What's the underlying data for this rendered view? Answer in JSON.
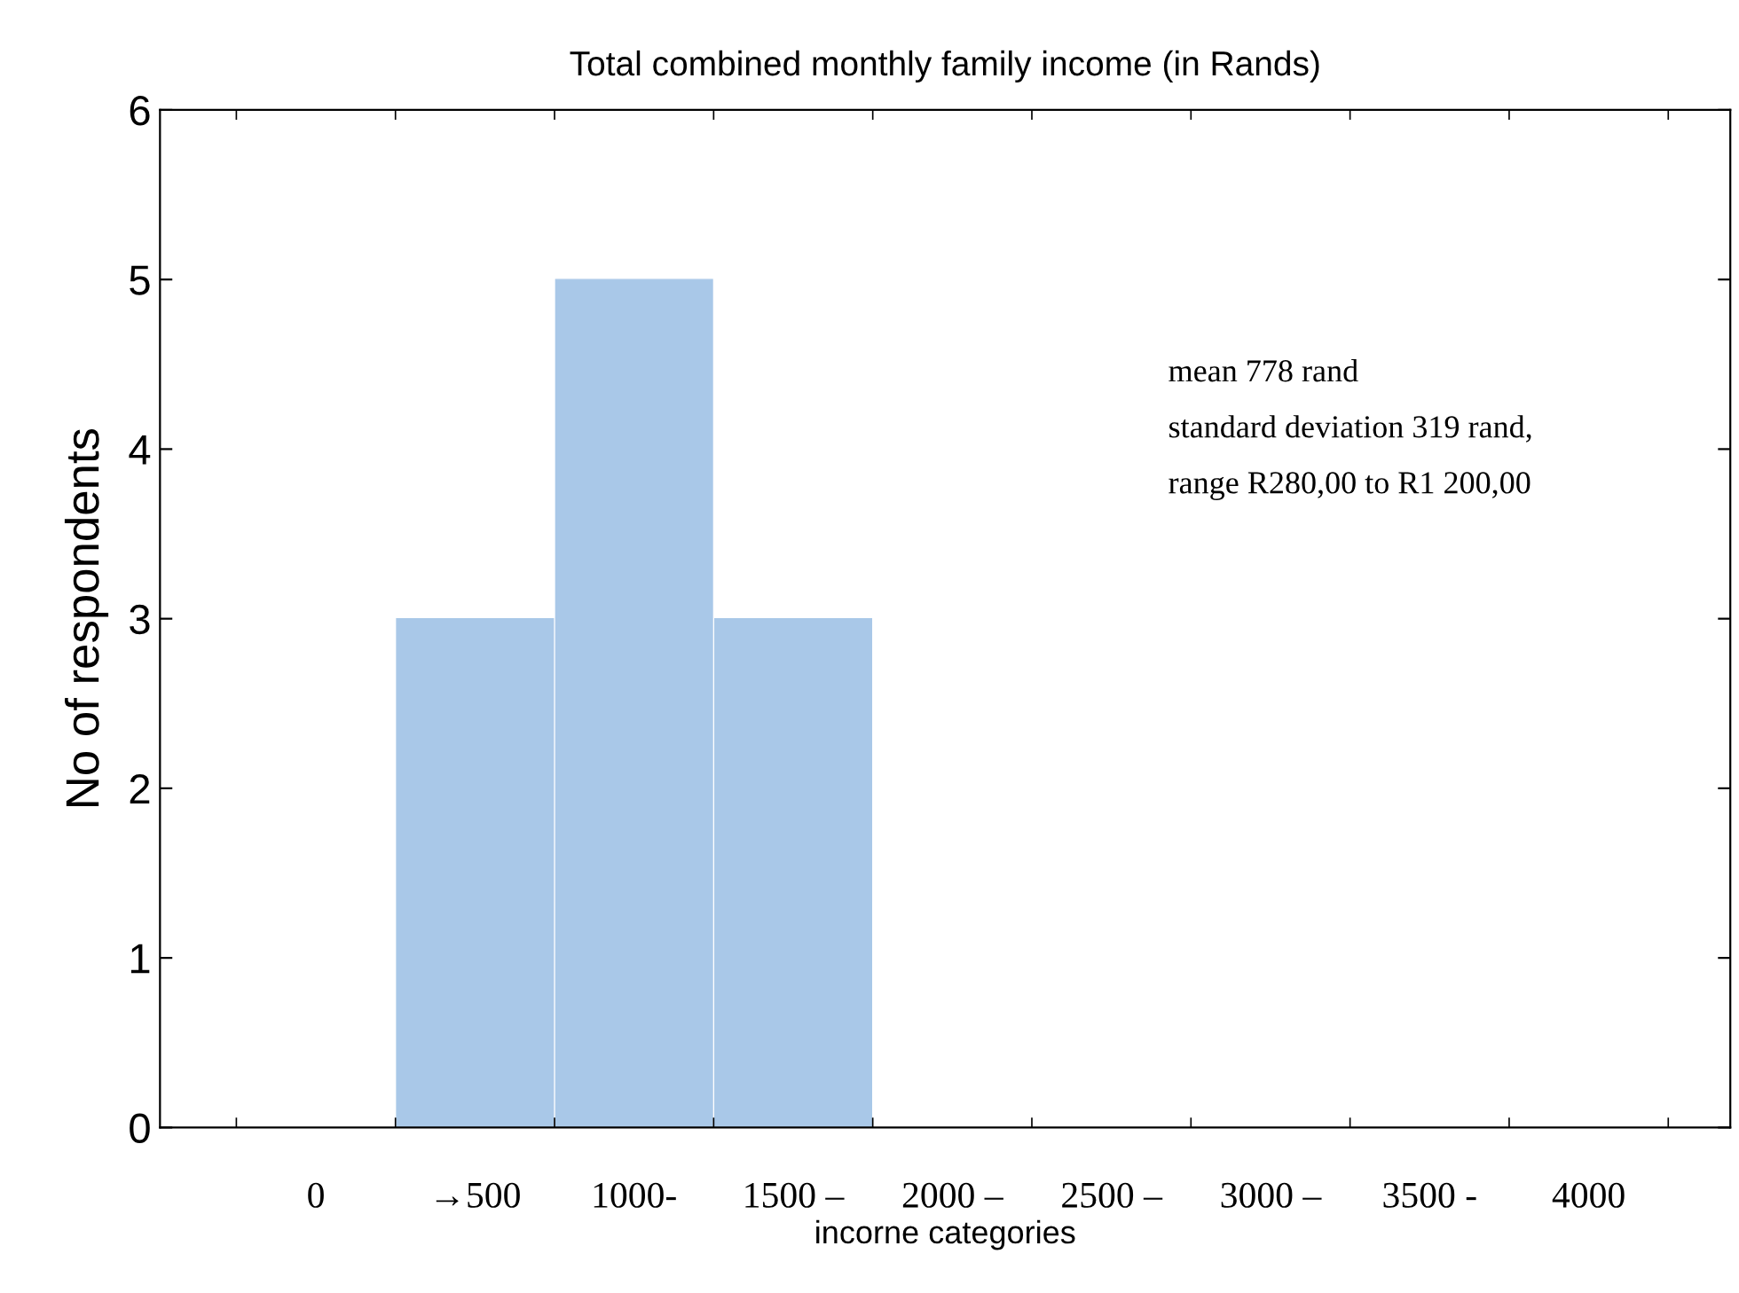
{
  "chart_data": {
    "type": "bar",
    "title": "Total combined monthly family income (in Rands)",
    "xlabel": "incorne categories",
    "ylabel": "No of respondents",
    "categories": [
      "0",
      "→500",
      "1000-",
      "1500 –",
      "2000 –",
      "2500 –",
      "3000 –",
      "3500 -",
      "4000"
    ],
    "values": [
      0,
      3,
      5,
      3,
      0,
      0,
      0,
      0,
      0
    ],
    "color": "#a9c8e8",
    "ylim": [
      0,
      6
    ],
    "yticks": [
      0,
      1,
      2,
      3,
      4,
      5,
      6
    ],
    "grid": false,
    "annotations": [
      "mean 778 rand",
      "standard deviation 319 rand,",
      "range R280,00 to R1 200,00"
    ]
  }
}
